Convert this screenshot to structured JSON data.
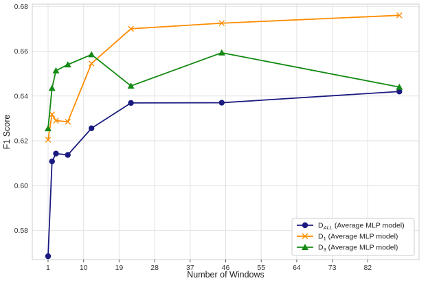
{
  "chart_data": {
    "type": "line",
    "xlabel": "Number of Windows",
    "ylabel": "F1 Score",
    "xlim": [
      -3,
      95
    ],
    "ylim": [
      0.567,
      0.681
    ],
    "x_ticks": [
      1,
      10,
      19,
      28,
      37,
      46,
      55,
      64,
      73,
      82
    ],
    "y_ticks": [
      0.58,
      0.6,
      0.62,
      0.64,
      0.66,
      0.68
    ],
    "grid": true,
    "legend_position": "bottom-right",
    "series": [
      {
        "name": "D",
        "name_sub": "ALL",
        "name_suffix": " (Average MLP model)",
        "color": "#1a1a80",
        "marker": "circle",
        "x": [
          1,
          2,
          3,
          6,
          12,
          22,
          45,
          90
        ],
        "y": [
          0.5685,
          0.6108,
          0.6143,
          0.6137,
          0.6256,
          0.6369,
          0.637,
          0.642
        ]
      },
      {
        "name": "D",
        "name_sub": "1",
        "name_suffix": " (Average MLP model)",
        "color": "#ff8c00",
        "marker": "x",
        "x": [
          1,
          2,
          3,
          6,
          12,
          22,
          45,
          90
        ],
        "y": [
          0.6205,
          0.6318,
          0.629,
          0.6285,
          0.6545,
          0.67,
          0.6725,
          0.676
        ]
      },
      {
        "name": "D",
        "name_sub": "3",
        "name_suffix": " (Average MLP model)",
        "color": "#138a13",
        "marker": "triangle",
        "x": [
          1,
          2,
          3,
          6,
          12,
          22,
          45,
          90
        ],
        "y": [
          0.6255,
          0.6435,
          0.6513,
          0.654,
          0.6585,
          0.6445,
          0.6593,
          0.644
        ]
      }
    ]
  }
}
